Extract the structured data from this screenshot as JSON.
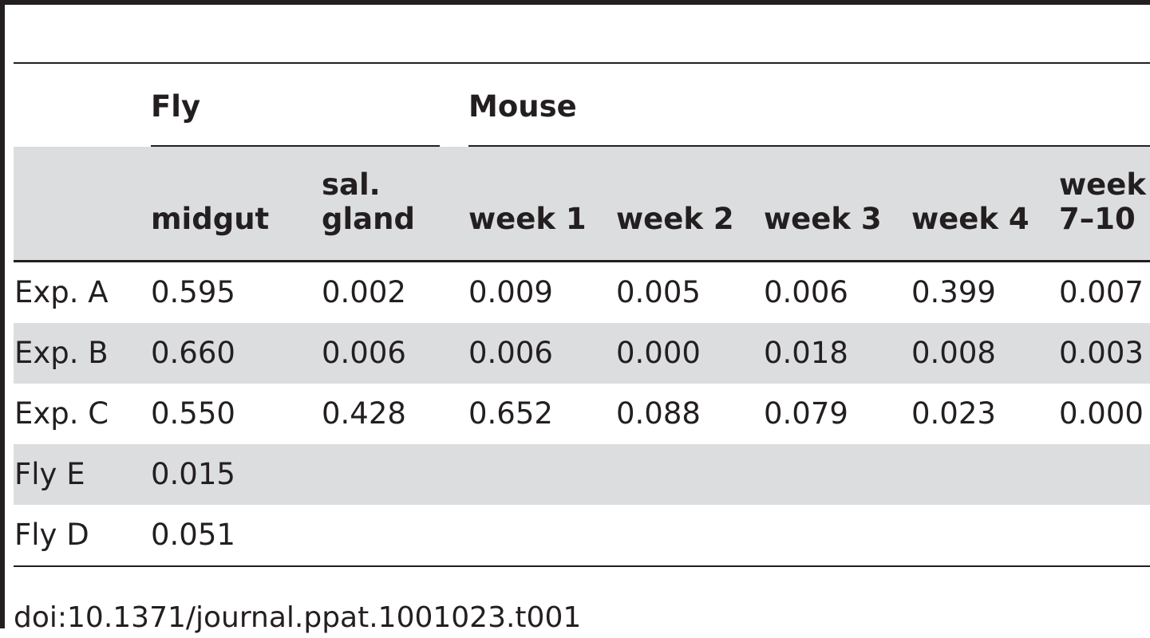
{
  "table": {
    "groups": [
      {
        "label": "Fly"
      },
      {
        "label": "Mouse"
      }
    ],
    "columns": [
      {
        "line1": "",
        "line2": "midgut"
      },
      {
        "line1": "sal.",
        "line2": "gland"
      },
      {
        "line1": "",
        "line2": "week 1"
      },
      {
        "line1": "",
        "line2": "week 2"
      },
      {
        "line1": "",
        "line2": "week 3"
      },
      {
        "line1": "",
        "line2": "week 4"
      },
      {
        "line1": "week",
        "line2": "7–10"
      }
    ],
    "rows": [
      {
        "label": "Exp. A",
        "values": [
          "0.595",
          "0.002",
          "0.009",
          "0.005",
          "0.006",
          "0.399",
          "0.007"
        ]
      },
      {
        "label": "Exp. B",
        "values": [
          "0.660",
          "0.006",
          "0.006",
          "0.000",
          "0.018",
          "0.008",
          "0.003"
        ]
      },
      {
        "label": "Exp. C",
        "values": [
          "0.550",
          "0.428",
          "0.652",
          "0.088",
          "0.079",
          "0.023",
          "0.000"
        ]
      },
      {
        "label": "Fly E",
        "values": [
          "0.015",
          "",
          "",
          "",
          "",
          "",
          ""
        ]
      },
      {
        "label": "Fly D",
        "values": [
          "0.051",
          "",
          "",
          "",
          "",
          "",
          ""
        ]
      }
    ]
  },
  "footer": {
    "doi": "doi:10.1371/journal.ppat.1001023.t001"
  }
}
